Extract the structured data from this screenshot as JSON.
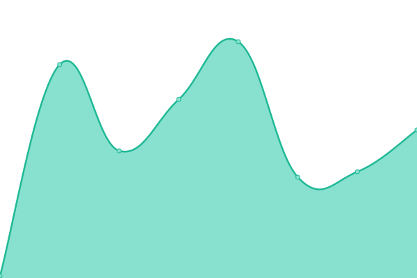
{
  "chart_data": {
    "type": "area",
    "categories": [
      null,
      null,
      null,
      null,
      null,
      null,
      null,
      null
    ],
    "series": [
      {
        "color": "#1fb995",
        "fill": "#88e0cf",
        "values": [
          3,
          307,
          183,
          257,
          340,
          145,
          153,
          213
        ]
      }
    ],
    "ylim": [
      0,
      400
    ],
    "markers": true
  }
}
